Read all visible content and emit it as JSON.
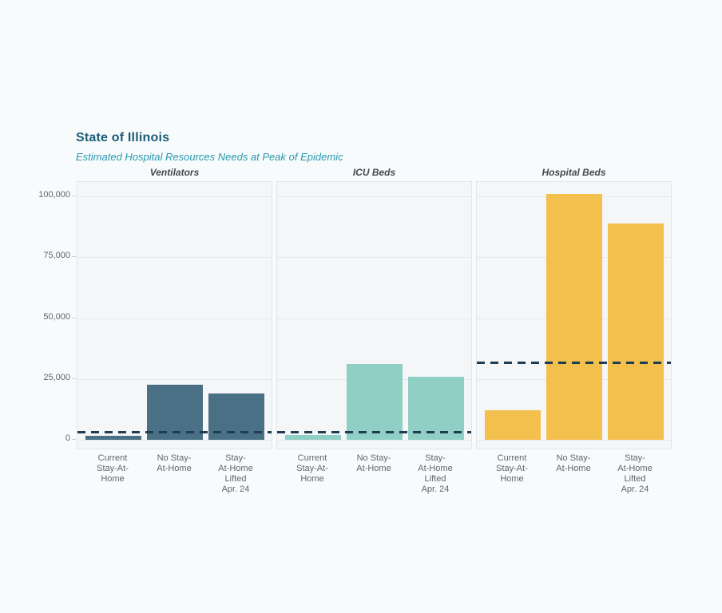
{
  "header": {
    "title": "State of Illinois",
    "subtitle": "Estimated Hospital Resources Needs at Peak of Epidemic"
  },
  "colors": {
    "title_text": "#1d5b75",
    "subtitle_text": "#2898ae",
    "panel_title_text": "#43494e",
    "axis_label_text": "#5f666d",
    "page_background": "#f7fbfc",
    "panel_background": "#f4f6f7",
    "panel_border": "#e2e6e8",
    "gridline": "#e5e8ea",
    "capacity_line": "#1e3d52",
    "ventilators_bar": "#4a7086",
    "icu_beds_bar": "#90cfc5",
    "hospital_beds_bar": "#f3c04e"
  },
  "chart_data": {
    "type": "bar",
    "title": "State of Illinois",
    "subtitle": "Estimated Hospital Resources Needs at Peak of Epidemic",
    "categories": [
      "Current\nStay-At-\nHome",
      "No Stay-\nAt-Home",
      "Stay-\nAt-Home\nLifted\nApr. 24"
    ],
    "ylim": [
      0,
      105000
    ],
    "yticks": [
      0,
      25000,
      50000,
      75000,
      100000
    ],
    "ytick_labels": [
      "0",
      "25,000",
      "50,000",
      "75,000",
      "100,000"
    ],
    "grid": true,
    "legend_position": "none",
    "capacity_line_style": "dashed",
    "panels": [
      {
        "label": "Ventilators",
        "bar_color": "#4a7086",
        "values": [
          1500,
          22500,
          19000
        ],
        "capacity_line": 3000
      },
      {
        "label": "ICU Beds",
        "bar_color": "#90cfc5",
        "values": [
          2000,
          31000,
          26000
        ],
        "capacity_line": 3000
      },
      {
        "label": "Hospital Beds",
        "bar_color": "#f3c04e",
        "values": [
          12000,
          101000,
          89000
        ],
        "capacity_line": 31500
      }
    ]
  }
}
